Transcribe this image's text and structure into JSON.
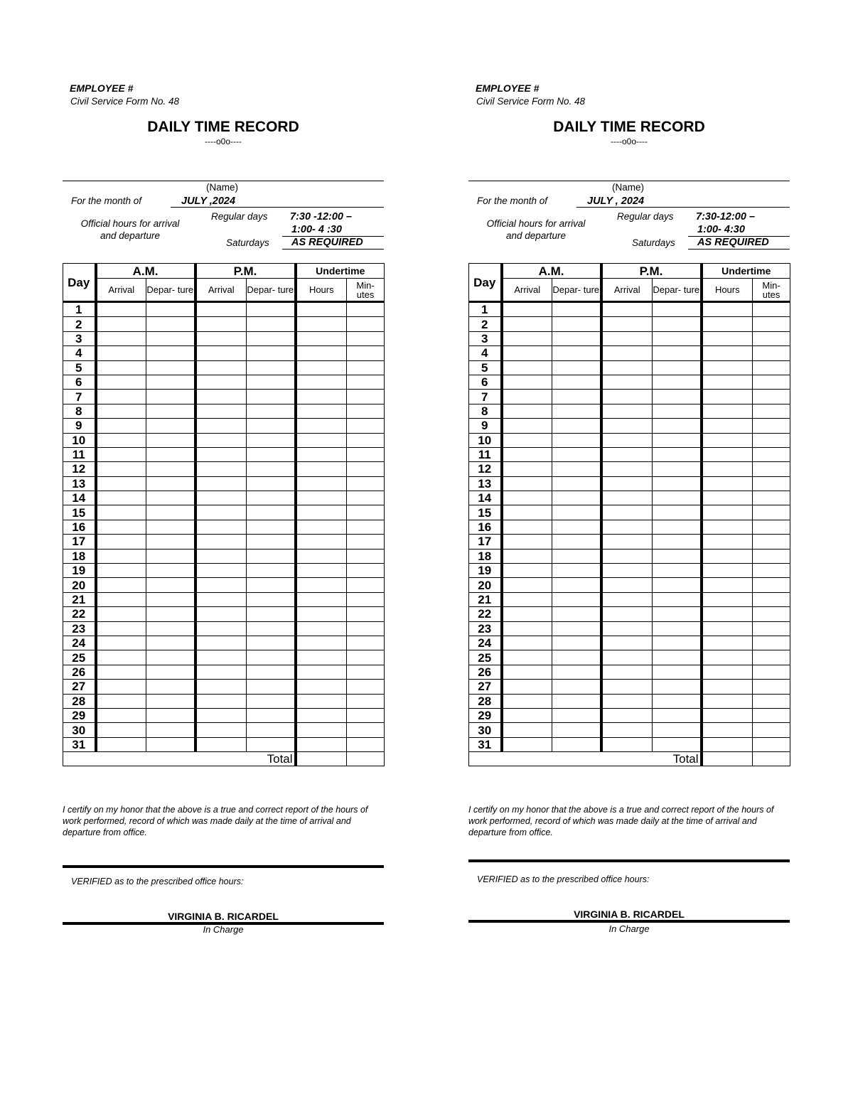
{
  "forms": [
    {
      "employee_label": "EMPLOYEE #",
      "form_no": "Civil Service Form No. 48",
      "title": "DAILY TIME RECORD",
      "separator": "----o0o----",
      "name_caption": "(Name)",
      "month_label": "For the month of",
      "month_value": "JULY ,2024",
      "official_hours_label_1": "Official hours for arrival",
      "official_hours_label_2": "and departure",
      "regular_days_label": "Regular days",
      "regular_days_value_1": "7:30 -12:00 –",
      "regular_days_value_2": "1:00- 4 :30",
      "saturdays_label": "Saturdays",
      "saturdays_value": "AS REQUIRED",
      "certification": "I certify on my honor that the above is a true and correct report of the hours of work performed, record of which was made daily at the time of arrival and departure from office.",
      "verified_label": "VERIFIED as to the prescribed office hours:",
      "verifier_name": "VIRGINIA B. RICARDEL",
      "verifier_role": "In Charge"
    },
    {
      "employee_label": "EMPLOYEE #",
      "form_no": "Civil Service Form No. 48",
      "title": "DAILY TIME RECORD",
      "separator": "----o0o----",
      "name_caption": "(Name)",
      "month_label": "For the month of",
      "month_value": "JULY , 2024",
      "official_hours_label_1": "Official hours for arrival",
      "official_hours_label_2": "and departure",
      "regular_days_label": "Regular days",
      "regular_days_value_1": "7:30-12:00 –",
      "regular_days_value_2": "1:00- 4:30",
      "saturdays_label": "Saturdays",
      "saturdays_value": "AS REQUIRED",
      "certification": "I certify on my honor that the above is a true and correct report of the hours of work performed, record of which was made daily at the time of arrival and departure from office.",
      "verified_label": "VERIFIED as to the prescribed office hours:",
      "verifier_name": "VIRGINIA B. RICARDEL",
      "verifier_role": "In Charge"
    }
  ],
  "table": {
    "day_header": "Day",
    "am_header": "A.M.",
    "pm_header": "P.M.",
    "undertime_header": "Undertime",
    "arrival": "Arrival",
    "departure": "Depar- ture",
    "hours": "Hours",
    "minutes": "Min- utes",
    "total_label": "Total",
    "days": [
      "1",
      "2",
      "3",
      "4",
      "5",
      "6",
      "7",
      "8",
      "9",
      "10",
      "11",
      "12",
      "13",
      "14",
      "15",
      "16",
      "17",
      "18",
      "19",
      "20",
      "21",
      "22",
      "23",
      "24",
      "25",
      "26",
      "27",
      "28",
      "29",
      "30",
      "31"
    ]
  }
}
